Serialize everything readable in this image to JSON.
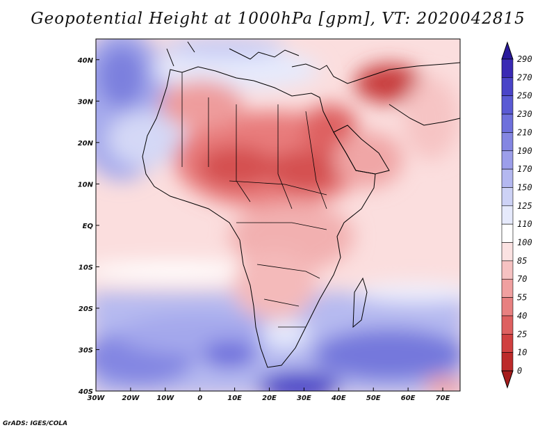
{
  "title": "Geopotential Height at 1000hPa [gpm], VT: 2020042815",
  "credit": "GrADS: IGES/COLA",
  "axes": {
    "x_ticks": [
      "30W",
      "20W",
      "10W",
      "0",
      "10E",
      "20E",
      "30E",
      "40E",
      "50E",
      "60E",
      "70E"
    ],
    "y_ticks": [
      "40N",
      "30N",
      "20N",
      "10N",
      "EQ",
      "10S",
      "20S",
      "30S",
      "40S"
    ]
  },
  "colorbar": {
    "labels": [
      "290",
      "270",
      "250",
      "230",
      "210",
      "190",
      "170",
      "150",
      "125",
      "110",
      "100",
      "85",
      "70",
      "55",
      "40",
      "25",
      "10",
      "0"
    ],
    "colors": [
      "#2a1a9c",
      "#3a2ab4",
      "#4a44c8",
      "#5a5ad4",
      "#6e70dc",
      "#8486e2",
      "#9c9eea",
      "#b4b8f0",
      "#cdd2f6",
      "#e6eafc",
      "#ffffff",
      "#fbe2e2",
      "#f6c2c2",
      "#f0a0a0",
      "#e88080",
      "#de6060",
      "#d04040",
      "#bc2a2a",
      "#a61c1c"
    ]
  },
  "chart_data": {
    "type": "heatmap",
    "title": "Geopotential Height at 1000hPa [gpm], VT: 2020042815",
    "variable": "Geopotential Height",
    "units": "gpm",
    "level": "1000hPa",
    "valid_time": "2020042815",
    "xlim": [
      -30,
      75
    ],
    "ylim": [
      -40,
      45
    ],
    "contour_levels": [
      0,
      10,
      25,
      40,
      55,
      70,
      85,
      100,
      110,
      125,
      150,
      170,
      190,
      210,
      230,
      250,
      270,
      290
    ]
  }
}
